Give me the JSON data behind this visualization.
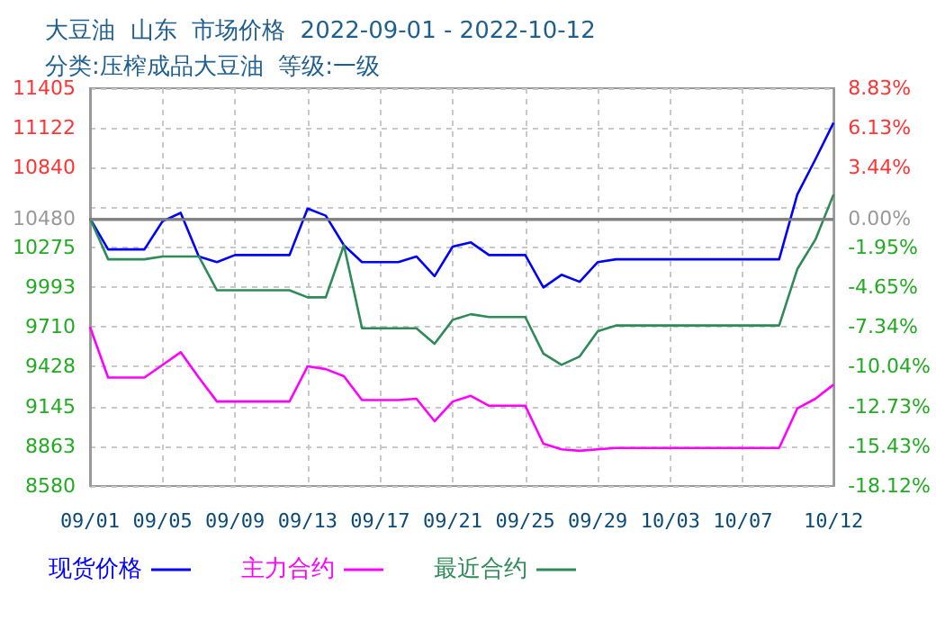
{
  "chart_data": {
    "type": "line",
    "title": "大豆油  山东  市场价格  2022-09-01 - 2022-10-12",
    "subtitle": "分类:压榨成品大豆油  等级:一级",
    "x": [
      "--09-01",
      "--09-02",
      "--09-03",
      "--09-04",
      "--09-05",
      "--09-06",
      "--09-07",
      "--09-08",
      "--09-09",
      "--09-10",
      "--09-11",
      "--09-12",
      "--09-13",
      "--09-14",
      "--09-15",
      "--09-16",
      "--09-17",
      "--09-18",
      "--09-19",
      "--09-20",
      "--09-21",
      "--09-22",
      "--09-23",
      "--09-24",
      "--09-25",
      "--09-26",
      "--09-27",
      "--09-28",
      "--09-29",
      "--09-30",
      "--10-01",
      "--10-02",
      "--10-03",
      "--10-04",
      "--10-05",
      "--10-06",
      "--10-07",
      "--10-08",
      "--10-09",
      "--10-10",
      "--10-11",
      "--10-12"
    ],
    "series": [
      {
        "name": "现货价格",
        "color": "#0000ff",
        "values": [
          10480,
          10260,
          10260,
          10260,
          10460,
          10520,
          10210,
          10170,
          10220,
          10220,
          10220,
          10220,
          10550,
          10500,
          10290,
          10170,
          10170,
          10170,
          10210,
          10070,
          10280,
          10310,
          10220,
          10220,
          10220,
          9990,
          10080,
          10030,
          10170,
          10190,
          10190,
          10190,
          10190,
          10190,
          10190,
          10190,
          10190,
          10190,
          10190,
          10650,
          10900,
          11160
        ]
      },
      {
        "name": "主力合约",
        "color": "#ff00ff",
        "values": [
          9710,
          9350,
          9350,
          9350,
          9440,
          9530,
          9350,
          9180,
          9180,
          9180,
          9180,
          9180,
          9430,
          9410,
          9360,
          9190,
          9190,
          9190,
          9200,
          9040,
          9180,
          9220,
          9150,
          9150,
          9150,
          8880,
          8840,
          8830,
          8840,
          8850,
          8850,
          8850,
          8850,
          8850,
          8850,
          8850,
          8850,
          8850,
          8850,
          9130,
          9200,
          9300
        ]
      },
      {
        "name": "最近合约",
        "color": "#2e8b57",
        "values": [
          10480,
          10190,
          10190,
          10190,
          10210,
          10210,
          10210,
          9970,
          9970,
          9970,
          9970,
          9970,
          9920,
          9920,
          10290,
          9700,
          9700,
          9700,
          9700,
          9590,
          9760,
          9800,
          9780,
          9780,
          9780,
          9520,
          9440,
          9500,
          9680,
          9720,
          9720,
          9720,
          9720,
          9720,
          9720,
          9720,
          9720,
          9720,
          9720,
          10120,
          10330,
          10650
        ]
      }
    ],
    "xlim": [
      "--09-01",
      "--10-12"
    ],
    "xticks": [
      {
        "value": "--09-01",
        "label": "09/01"
      },
      {
        "value": "--09-05",
        "label": "09/05"
      },
      {
        "value": "--09-09",
        "label": "09/09"
      },
      {
        "value": "--09-13",
        "label": "09/13"
      },
      {
        "value": "--09-17",
        "label": "09/17"
      },
      {
        "value": "--09-21",
        "label": "09/21"
      },
      {
        "value": "--09-25",
        "label": "09/25"
      },
      {
        "value": "--09-29",
        "label": "09/29"
      },
      {
        "value": "--10-03",
        "label": "10/03"
      },
      {
        "value": "--10-07",
        "label": "10/07"
      },
      {
        "value": "--10-12",
        "label": "10/12"
      }
    ],
    "ylim": [
      8580,
      11405
    ],
    "yticks": [
      8580,
      8863,
      9145,
      9428,
      9710,
      9993,
      10275,
      10480,
      {
        "value": 10558,
        "label": null
      },
      10840,
      11122,
      11405
    ],
    "y2lim": [
      -18.12,
      8.83
    ],
    "y2ticks": [
      {
        "value": -18.12,
        "label": "-18.12%"
      },
      {
        "value": -15.43,
        "label": "-15.43%"
      },
      {
        "value": -12.73,
        "label": "-12.73%"
      },
      {
        "value": -10.04,
        "label": "-10.04%"
      },
      {
        "value": -7.34,
        "label": "-7.34%"
      },
      {
        "value": -4.65,
        "label": "-4.65%"
      },
      {
        "value": -1.95,
        "label": "-1.95%"
      },
      {
        "value": 0,
        "label": "0.00%"
      },
      {
        "value": 0.74,
        "label": null
      },
      {
        "value": 3.44,
        "label": "3.44%"
      },
      {
        "value": 6.13,
        "label": "6.13%"
      },
      {
        "value": 8.83,
        "label": "8.83%"
      }
    ],
    "ref_lines": [
      {
        "axis": "y",
        "value": 10480,
        "color": "#808080"
      }
    ],
    "grid": true,
    "legend": "bottom",
    "marker": "none",
    "line_style": "solid"
  }
}
